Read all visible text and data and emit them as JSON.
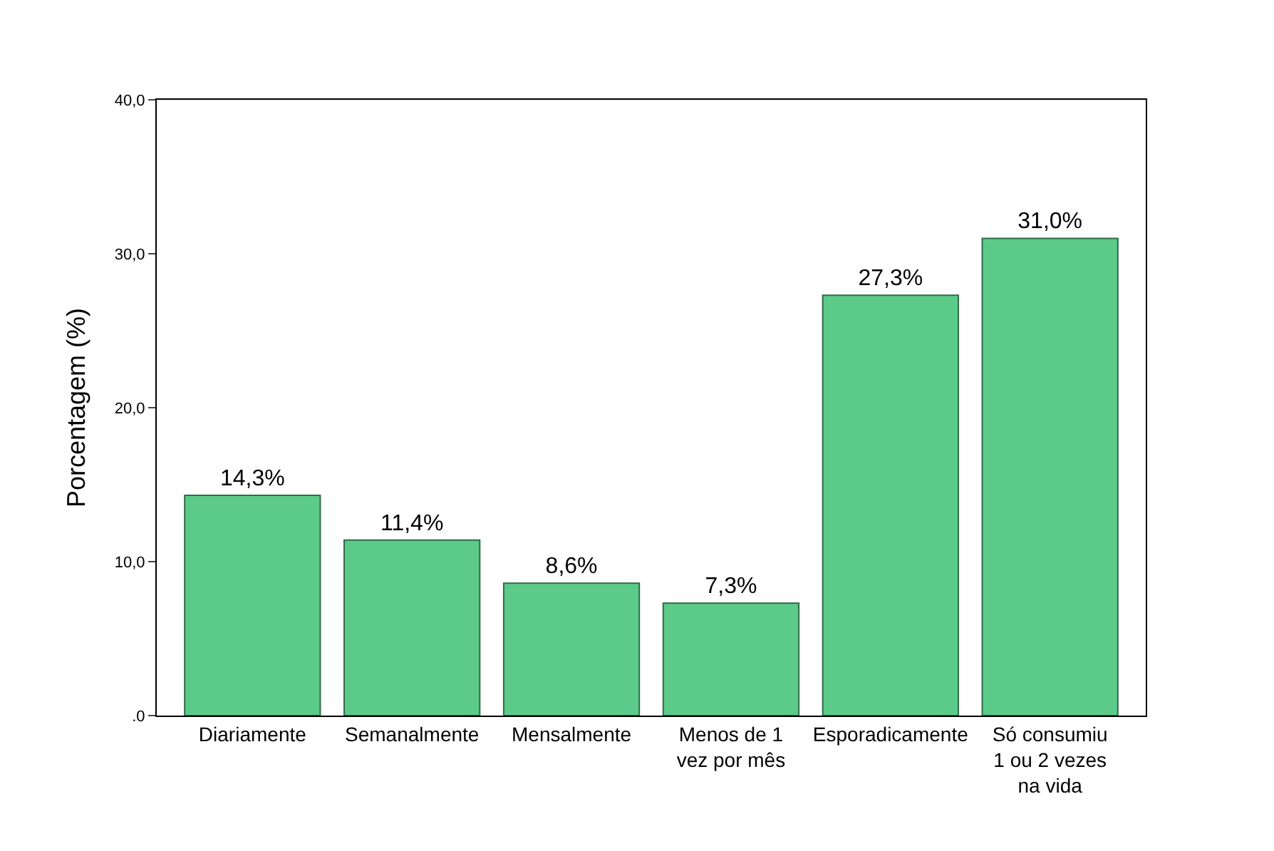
{
  "chart_data": {
    "type": "bar",
    "ylabel": "Porcentagem (%)",
    "categories": [
      "Diariamente",
      "Semanalmente",
      "Mensalmente",
      "Menos de 1 vez por mês",
      "Esporadicamente",
      "Só consumiu 1 ou 2 vezes na vida"
    ],
    "values": [
      14.3,
      11.4,
      8.6,
      7.3,
      27.3,
      31.0
    ],
    "value_labels": [
      "14,3%",
      "11,4%",
      "8,6%",
      "7,3%",
      "27,3%",
      "31,0%"
    ],
    "color": "#5ccb8a",
    "ylim": [
      0,
      40
    ],
    "yticks": [
      {
        "value": 0,
        "label": ".0"
      },
      {
        "value": 10,
        "label": "10,0"
      },
      {
        "value": 20,
        "label": "20,0"
      },
      {
        "value": 30,
        "label": "30,0"
      },
      {
        "value": 40,
        "label": "40,0"
      }
    ]
  }
}
